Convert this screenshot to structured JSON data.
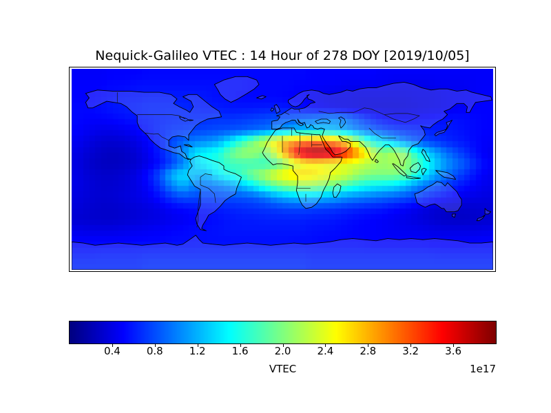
{
  "figure": {
    "title": "Nequick-Galileo VTEC : 14 Hour of 278 DOY [2019/10/05]",
    "background": "#ffffff"
  },
  "chart_data": {
    "type": "heatmap",
    "title": "Nequick-Galileo VTEC : 14 Hour of 278 DOY [2019/10/05]",
    "description": "Global VTEC map on an equirectangular world projection with coastlines and country borders; coarse lat/lon cells colored with the jet colormap",
    "xlabel": "",
    "ylabel": "",
    "lon_range": [
      -180,
      180
    ],
    "lat_range": [
      -90,
      90
    ],
    "colormap": "jet",
    "vmin": 0.0,
    "vmax": 4.0,
    "value_scale": "1e17",
    "peak": {
      "value": 3.95,
      "region": "northeast Africa / Arabia, ~15N, 15-45E"
    },
    "colorbar": {
      "label": "VTEC",
      "offset_text": "1e17",
      "orientation": "horizontal",
      "tick_values": [
        0.4,
        0.8,
        1.2,
        1.6,
        2.0,
        2.4,
        2.8,
        3.2,
        3.6
      ],
      "tick_labels": [
        "0.4",
        "0.8",
        "1.2",
        "1.6",
        "2.0",
        "2.4",
        "2.8",
        "3.2",
        "3.6"
      ]
    },
    "grid": {
      "note": "VTEC values in units of 1e17; 18 latitude rows (centers 85N to 85S, 10 deg step) x 36 longitude columns (centers 175W to 175E, 10 deg step)",
      "lat_start": 85,
      "lat_step": -10,
      "lon_start": -175,
      "lon_step": 10,
      "values": [
        [
          0.48,
          0.48,
          0.48,
          0.5,
          0.5,
          0.5,
          0.52,
          0.52,
          0.52,
          0.52,
          0.52,
          0.52,
          0.52,
          0.52,
          0.52,
          0.52,
          0.52,
          0.52,
          0.52,
          0.52,
          0.5,
          0.5,
          0.5,
          0.5,
          0.5,
          0.5,
          0.48,
          0.48,
          0.48,
          0.48,
          0.48,
          0.48,
          0.48,
          0.48,
          0.48,
          0.48
        ],
        [
          0.5,
          0.5,
          0.5,
          0.52,
          0.52,
          0.55,
          0.55,
          0.55,
          0.55,
          0.55,
          0.55,
          0.55,
          0.55,
          0.55,
          0.55,
          0.52,
          0.52,
          0.52,
          0.52,
          0.5,
          0.5,
          0.48,
          0.48,
          0.45,
          0.45,
          0.45,
          0.45,
          0.42,
          0.42,
          0.42,
          0.42,
          0.45,
          0.45,
          0.45,
          0.48,
          0.48
        ],
        [
          0.5,
          0.5,
          0.52,
          0.55,
          0.58,
          0.58,
          0.6,
          0.6,
          0.6,
          0.6,
          0.6,
          0.58,
          0.55,
          0.55,
          0.52,
          0.52,
          0.52,
          0.52,
          0.5,
          0.48,
          0.45,
          0.42,
          0.4,
          0.4,
          0.38,
          0.38,
          0.38,
          0.38,
          0.38,
          0.4,
          0.4,
          0.42,
          0.45,
          0.45,
          0.48,
          0.5
        ],
        [
          0.52,
          0.52,
          0.55,
          0.58,
          0.6,
          0.62,
          0.65,
          0.65,
          0.65,
          0.65,
          0.62,
          0.6,
          0.6,
          0.58,
          0.58,
          0.58,
          0.6,
          0.6,
          0.58,
          0.55,
          0.5,
          0.45,
          0.42,
          0.4,
          0.38,
          0.36,
          0.35,
          0.35,
          0.36,
          0.38,
          0.4,
          0.42,
          0.45,
          0.48,
          0.5,
          0.5
        ],
        [
          0.52,
          0.5,
          0.5,
          0.52,
          0.55,
          0.58,
          0.6,
          0.63,
          0.65,
          0.66,
          0.67,
          0.68,
          0.7,
          0.7,
          0.72,
          0.75,
          0.78,
          0.82,
          0.85,
          0.9,
          0.95,
          1.0,
          1.05,
          0.95,
          0.8,
          0.65,
          0.55,
          0.5,
          0.48,
          0.5,
          0.52,
          0.55,
          0.56,
          0.54,
          0.52,
          0.5
        ],
        [
          0.5,
          0.45,
          0.42,
          0.42,
          0.45,
          0.5,
          0.58,
          0.65,
          0.7,
          0.72,
          0.75,
          0.78,
          0.8,
          0.82,
          0.85,
          0.9,
          0.95,
          1.05,
          1.15,
          1.25,
          1.3,
          1.3,
          1.25,
          1.15,
          1.0,
          0.9,
          0.8,
          0.72,
          0.68,
          0.65,
          0.62,
          0.6,
          0.58,
          0.55,
          0.52,
          0.5
        ],
        [
          0.45,
          0.38,
          0.33,
          0.32,
          0.34,
          0.4,
          0.5,
          0.62,
          0.78,
          0.9,
          1.0,
          1.05,
          1.15,
          1.4,
          1.7,
          2.0,
          2.3,
          2.6,
          2.85,
          3.0,
          3.05,
          3.0,
          2.9,
          2.6,
          2.1,
          1.6,
          1.4,
          1.2,
          1.0,
          0.85,
          0.75,
          0.68,
          0.62,
          0.58,
          0.52,
          0.48
        ],
        [
          0.4,
          0.33,
          0.28,
          0.26,
          0.28,
          0.34,
          0.45,
          0.6,
          0.8,
          1.05,
          1.4,
          1.5,
          1.6,
          1.9,
          2.1,
          2.1,
          1.95,
          2.4,
          3.1,
          3.7,
          3.95,
          3.95,
          3.8,
          3.4,
          2.9,
          2.4,
          2.05,
          2.2,
          2.05,
          1.6,
          1.3,
          1.05,
          0.85,
          0.7,
          0.55,
          0.45
        ],
        [
          0.38,
          0.3,
          0.26,
          0.25,
          0.27,
          0.32,
          0.42,
          0.55,
          0.75,
          1.0,
          1.35,
          1.5,
          1.6,
          1.75,
          1.75,
          1.75,
          1.7,
          1.8,
          2.1,
          2.4,
          2.5,
          2.45,
          2.4,
          2.35,
          2.3,
          2.2,
          2.1,
          2.15,
          2.1,
          1.8,
          1.5,
          1.2,
          1.0,
          0.85,
          0.65,
          0.5
        ],
        [
          0.4,
          0.33,
          0.3,
          0.3,
          0.33,
          0.4,
          0.55,
          0.8,
          1.2,
          1.4,
          1.25,
          1.2,
          1.45,
          1.6,
          1.75,
          2.0,
          2.2,
          2.45,
          2.6,
          2.65,
          2.6,
          2.5,
          2.4,
          2.3,
          2.1,
          2.0,
          2.0,
          2.0,
          1.9,
          1.6,
          1.3,
          1.05,
          0.85,
          0.7,
          0.55,
          0.45
        ],
        [
          0.4,
          0.35,
          0.32,
          0.32,
          0.35,
          0.4,
          0.5,
          0.7,
          1.0,
          1.2,
          1.0,
          0.95,
          1.0,
          1.1,
          1.25,
          1.45,
          1.7,
          1.9,
          2.05,
          2.1,
          2.1,
          2.0,
          1.9,
          1.75,
          1.6,
          1.5,
          1.45,
          1.4,
          1.25,
          1.05,
          0.9,
          0.78,
          0.65,
          0.55,
          0.48,
          0.42
        ],
        [
          0.38,
          0.34,
          0.32,
          0.33,
          0.36,
          0.4,
          0.45,
          0.55,
          0.7,
          0.8,
          0.78,
          0.76,
          0.78,
          0.8,
          0.82,
          0.85,
          0.95,
          1.1,
          1.2,
          1.25,
          1.25,
          1.2,
          1.15,
          1.05,
          1.0,
          0.95,
          0.9,
          0.85,
          0.8,
          0.72,
          0.62,
          0.55,
          0.48,
          0.42,
          0.4,
          0.38
        ],
        [
          0.35,
          0.32,
          0.3,
          0.3,
          0.32,
          0.35,
          0.38,
          0.42,
          0.48,
          0.52,
          0.55,
          0.58,
          0.6,
          0.63,
          0.66,
          0.68,
          0.7,
          0.73,
          0.76,
          0.76,
          0.74,
          0.72,
          0.7,
          0.66,
          0.63,
          0.6,
          0.58,
          0.53,
          0.48,
          0.42,
          0.36,
          0.32,
          0.3,
          0.3,
          0.32,
          0.34
        ],
        [
          0.33,
          0.31,
          0.3,
          0.3,
          0.32,
          0.35,
          0.38,
          0.4,
          0.44,
          0.46,
          0.5,
          0.52,
          0.55,
          0.58,
          0.6,
          0.6,
          0.62,
          0.62,
          0.62,
          0.62,
          0.6,
          0.6,
          0.58,
          0.55,
          0.52,
          0.5,
          0.48,
          0.45,
          0.42,
          0.38,
          0.34,
          0.3,
          0.28,
          0.28,
          0.3,
          0.32
        ],
        [
          0.42,
          0.4,
          0.4,
          0.4,
          0.42,
          0.44,
          0.46,
          0.48,
          0.5,
          0.52,
          0.54,
          0.55,
          0.56,
          0.58,
          0.58,
          0.58,
          0.58,
          0.58,
          0.58,
          0.58,
          0.56,
          0.55,
          0.54,
          0.52,
          0.5,
          0.5,
          0.48,
          0.46,
          0.45,
          0.44,
          0.42,
          0.4,
          0.4,
          0.4,
          0.4,
          0.42
        ],
        [
          0.5,
          0.5,
          0.5,
          0.5,
          0.5,
          0.52,
          0.52,
          0.52,
          0.54,
          0.54,
          0.54,
          0.55,
          0.55,
          0.55,
          0.55,
          0.55,
          0.55,
          0.55,
          0.55,
          0.54,
          0.54,
          0.52,
          0.52,
          0.52,
          0.52,
          0.5,
          0.5,
          0.5,
          0.5,
          0.5,
          0.48,
          0.48,
          0.48,
          0.48,
          0.5,
          0.5
        ],
        [
          0.58,
          0.58,
          0.6,
          0.6,
          0.6,
          0.6,
          0.62,
          0.62,
          0.62,
          0.62,
          0.62,
          0.62,
          0.62,
          0.62,
          0.62,
          0.62,
          0.62,
          0.62,
          0.62,
          0.62,
          0.6,
          0.6,
          0.6,
          0.6,
          0.6,
          0.6,
          0.6,
          0.6,
          0.6,
          0.6,
          0.6,
          0.58,
          0.58,
          0.58,
          0.58,
          0.58
        ],
        [
          0.65,
          0.65,
          0.65,
          0.65,
          0.65,
          0.65,
          0.68,
          0.68,
          0.68,
          0.68,
          0.68,
          0.68,
          0.68,
          0.68,
          0.68,
          0.68,
          0.68,
          0.68,
          0.68,
          0.68,
          0.65,
          0.65,
          0.65,
          0.65,
          0.65,
          0.65,
          0.65,
          0.65,
          0.65,
          0.65,
          0.65,
          0.65,
          0.65,
          0.65,
          0.65,
          0.65
        ]
      ]
    }
  }
}
